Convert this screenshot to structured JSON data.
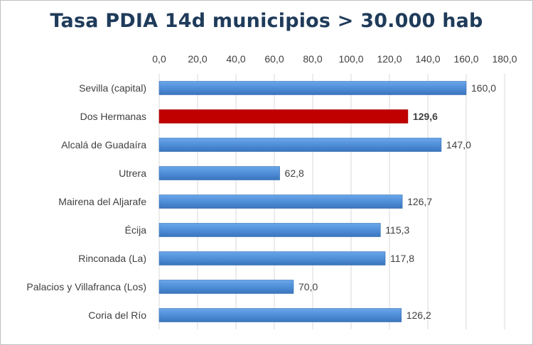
{
  "chart_data": {
    "type": "bar",
    "orientation": "horizontal",
    "title": "Tasa  PDIA  14d municipios  > 30.000 hab",
    "categories": [
      "Sevilla (capital)",
      "Dos Hermanas",
      "Alcalá de Guadaíra",
      "Utrera",
      "Mairena del Aljarafe",
      "Écija",
      "Rinconada (La)",
      "Palacios y Villafranca (Los)",
      "Coria del Río"
    ],
    "values": [
      160.0,
      129.6,
      147.0,
      62.8,
      126.7,
      115.3,
      117.8,
      70.0,
      126.2
    ],
    "value_labels": [
      "160,0",
      "129,6",
      "147,0",
      "62,8",
      "126,7",
      "115,3",
      "117,8",
      "70,0",
      "126,2"
    ],
    "highlighted": "Dos Hermanas",
    "xlim": [
      0,
      180
    ],
    "x_ticks": [
      "0,0",
      "20,0",
      "40,0",
      "60,0",
      "80,0",
      "100,0",
      "120,0",
      "140,0",
      "160,0",
      "180,0"
    ],
    "x_axis_position": "top",
    "grid": "vertical",
    "legend": "none",
    "colors": {
      "bar": "#4f8fd8",
      "highlight": "#c00000",
      "grid": "#d9d9d9",
      "text": "#404040"
    }
  }
}
